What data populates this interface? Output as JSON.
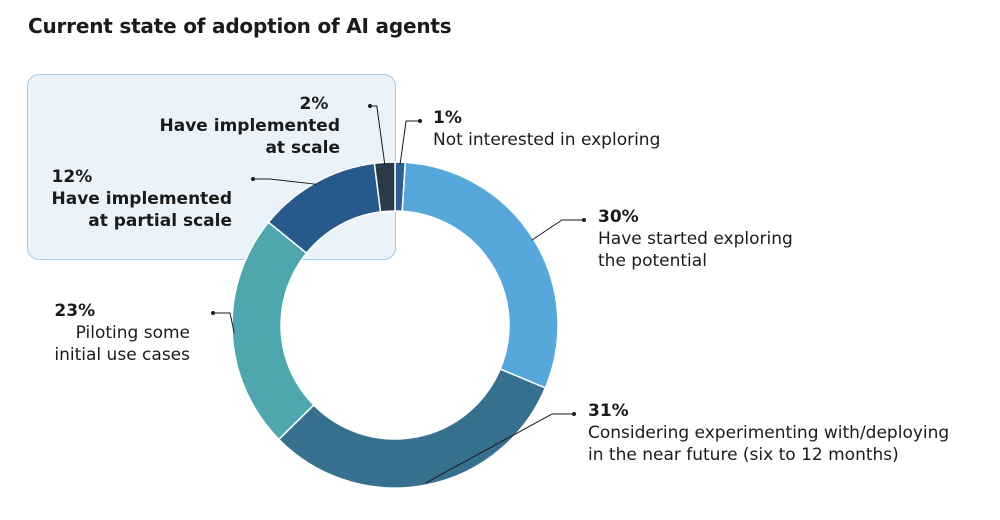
{
  "chart_data": {
    "type": "pie",
    "title": "Current state of adoption of AI agents",
    "slices": [
      {
        "key": "not_interested",
        "label": "Not interested in exploring",
        "value": 1,
        "display": "1%",
        "color": "#2d5f96"
      },
      {
        "key": "started_exploring",
        "label": "Have started exploring\nthe potential",
        "value": 30,
        "display": "30%",
        "color": "#56a7dc"
      },
      {
        "key": "considering",
        "label": "Considering experimenting with/deploying\nin the near future (six to 12 months)",
        "value": 31,
        "display": "31%",
        "color": "#36708f"
      },
      {
        "key": "piloting",
        "label": "Piloting some\ninitial use cases",
        "value": 23,
        "display": "23%",
        "color": "#4da7ad"
      },
      {
        "key": "partial_scale",
        "label": "Have implemented\nat partial scale",
        "value": 12,
        "display": "12%",
        "color": "#275a8a"
      },
      {
        "key": "at_scale",
        "label": "Have implemented\nat scale",
        "value": 2,
        "display": "2%",
        "color": "#2b3a48"
      }
    ],
    "highlighted": [
      "partial_scale",
      "at_scale"
    ]
  }
}
